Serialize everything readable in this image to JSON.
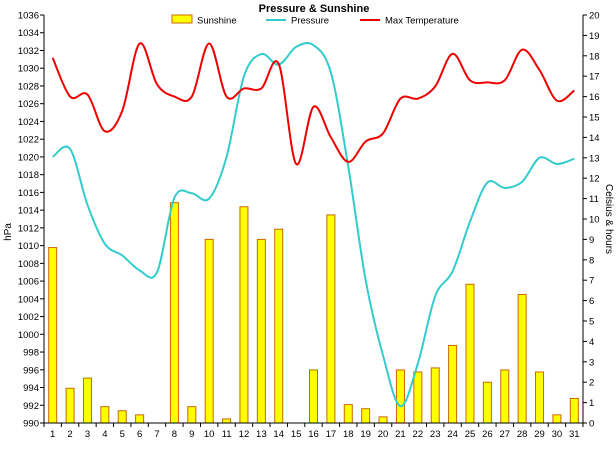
{
  "chart_data": {
    "type": "bar",
    "title": "Pressure & Sunshine",
    "ylabel_left": "hPa",
    "ylabel_right": "Celsius & hours",
    "x": [
      1,
      2,
      3,
      4,
      5,
      6,
      7,
      8,
      9,
      10,
      11,
      12,
      13,
      14,
      15,
      16,
      17,
      18,
      19,
      20,
      21,
      22,
      23,
      24,
      25,
      26,
      27,
      28,
      29,
      30,
      31
    ],
    "left_axis": {
      "min": 990,
      "max": 1036,
      "step": 2
    },
    "right_axis": {
      "min": 0,
      "max": 20,
      "step": 1
    },
    "grid": false,
    "legend_position": "top",
    "series": [
      {
        "name": "Sunshine",
        "type": "bar",
        "axis": "right",
        "color": "#ffff00",
        "edge_color": "#cc6600",
        "values": [
          8.6,
          1.7,
          2.2,
          0.8,
          0.6,
          0.4,
          0,
          10.8,
          0.8,
          9.0,
          0.2,
          10.6,
          9.0,
          9.5,
          0,
          2.6,
          10.2,
          0.9,
          0.7,
          0.3,
          2.6,
          2.5,
          2.7,
          3.8,
          6.8,
          2.0,
          2.6,
          6.3,
          2.5,
          0.4,
          1.2
        ]
      },
      {
        "name": "Pressure",
        "type": "line",
        "axis": "left",
        "color": "#33cccc",
        "values": [
          1020.0,
          1020.9,
          1014.6,
          1010.2,
          1008.9,
          1007.2,
          1007.0,
          1015.4,
          1015.9,
          1015.3,
          1020.0,
          1029.1,
          1031.6,
          1030.4,
          1032.4,
          1032.6,
          1029.5,
          1018.9,
          1006.1,
          997.6,
          991.9,
          996.7,
          1004.3,
          1007.1,
          1012.7,
          1017.1,
          1016.5,
          1017.2,
          1019.9,
          1019.2,
          1019.8
        ]
      },
      {
        "name": "Max Temperature",
        "type": "line",
        "axis": "right",
        "color": "#ee0000",
        "values": [
          17.9,
          16.0,
          16.1,
          14.3,
          15.3,
          18.6,
          16.6,
          16.0,
          16.0,
          18.6,
          16.0,
          16.4,
          16.4,
          17.6,
          12.7,
          15.5,
          14.0,
          12.8,
          13.8,
          14.2,
          15.9,
          15.9,
          16.5,
          18.1,
          16.8,
          16.7,
          16.8,
          18.3,
          17.3,
          15.8,
          16.3
        ]
      }
    ]
  }
}
